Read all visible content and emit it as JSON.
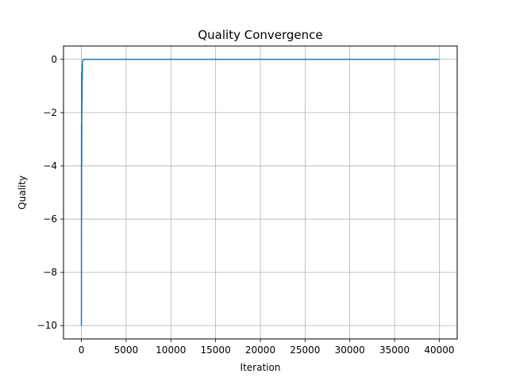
{
  "chart_data": {
    "type": "line",
    "title": "Quality Convergence",
    "xlabel": "Iteration",
    "ylabel": "Quality",
    "xlim": [
      -2000,
      42000
    ],
    "ylim": [
      -10.5,
      0.5
    ],
    "xticks": [
      0,
      5000,
      10000,
      15000,
      20000,
      25000,
      30000,
      35000,
      40000
    ],
    "xtick_labels": [
      "0",
      "5000",
      "10000",
      "15000",
      "20000",
      "25000",
      "30000",
      "35000",
      "40000"
    ],
    "yticks": [
      0,
      -2,
      -4,
      -6,
      -8,
      -10
    ],
    "ytick_labels": [
      "0",
      "−2",
      "−4",
      "−6",
      "−8",
      "−10"
    ],
    "grid": true,
    "series": [
      {
        "color": "#1f77b4",
        "x": [
          0,
          10,
          20,
          30,
          40,
          50,
          60,
          70,
          80,
          90,
          100,
          120,
          150,
          200,
          300,
          500,
          1000,
          40000
        ],
        "y": [
          -10,
          -2.5,
          -6,
          -0.5,
          -4,
          -1,
          -2,
          -0.4,
          -1.5,
          -0.2,
          -0.8,
          -0.1,
          -0.05,
          -0.02,
          0,
          0,
          0,
          0
        ]
      }
    ]
  }
}
